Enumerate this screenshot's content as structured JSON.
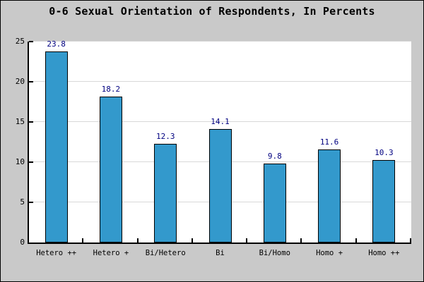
{
  "title": "0-6 Sexual Orientation of Respondents, In Percents",
  "chart_data": {
    "type": "bar",
    "title": "0-6 Sexual Orientation of Respondents, In Percents",
    "categories": [
      "Hetero ++",
      "Hetero +",
      "Bi/Hetero",
      "Bi",
      "Bi/Homo",
      "Homo +",
      "Homo ++"
    ],
    "values": [
      23.8,
      18.2,
      12.3,
      14.1,
      9.8,
      11.6,
      10.3
    ],
    "value_labels": [
      "23.8",
      "18.2",
      "12.3",
      "14.1",
      "9.8",
      "11.6",
      "10.3"
    ],
    "xlabel": "",
    "ylabel": "",
    "ylim": [
      0,
      25
    ],
    "yticks": [
      0,
      5,
      10,
      15,
      20,
      25
    ],
    "grid": true,
    "legend": "none",
    "colors": {
      "bar_fill": "#3399cc",
      "bar_border": "#000000",
      "value_label": "#000080",
      "gridline": "#d8d8d8",
      "outer_background": "#c9c9c9",
      "plot_background": "#ffffff",
      "axis": "#000000",
      "text": "#000000"
    }
  }
}
